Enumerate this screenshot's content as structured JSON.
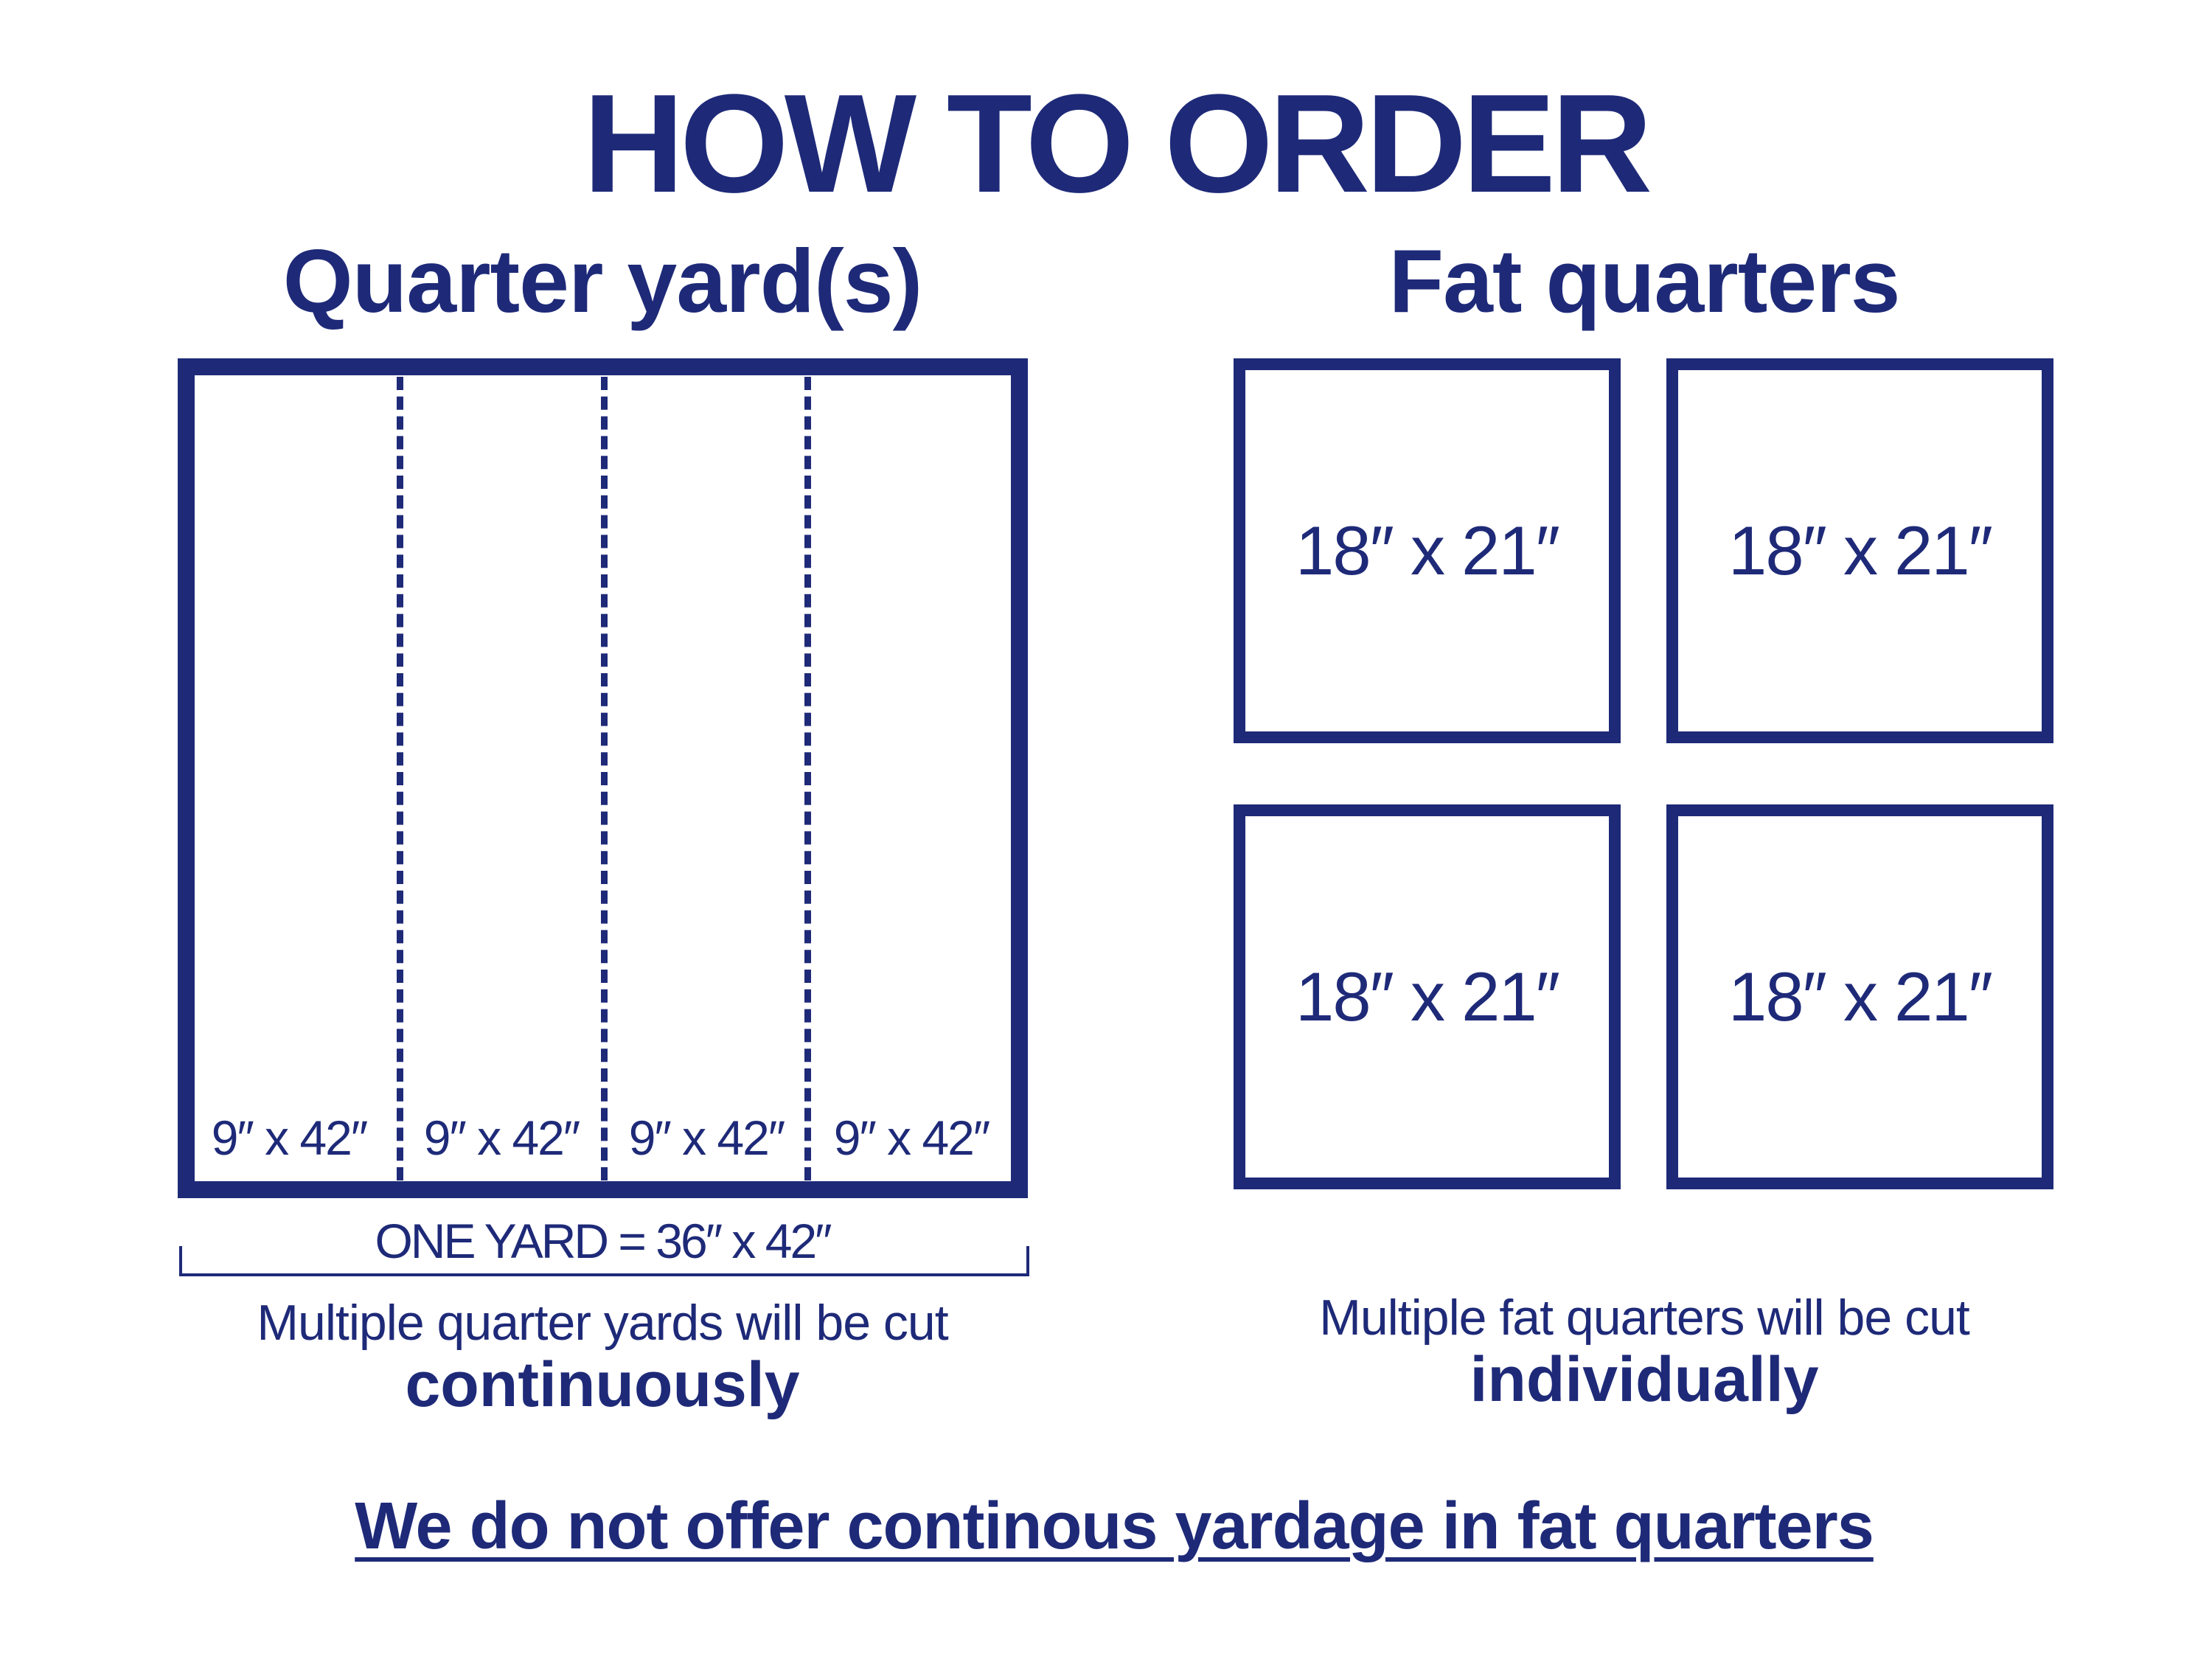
{
  "title": "HOW TO ORDER",
  "colors": {
    "primary": "#1e2a78",
    "background": "#ffffff"
  },
  "quarter_yard": {
    "heading": "Quarter yard(s)",
    "strips": [
      "9″ x 42″",
      "9″ x 42″",
      "9″ x 42″",
      "9″ x 42″"
    ],
    "measure": "ONE YARD = 36″ x 42″",
    "note": "Multiple quarter yards will be cut",
    "emphasis": "continuously"
  },
  "fat_quarters": {
    "heading": "Fat quarters",
    "pieces": [
      "18″ x 21″",
      "18″ x 21″",
      "18″ x 21″",
      "18″ x 21″"
    ],
    "note": "Multiple fat quarters will be cut",
    "emphasis": "individually"
  },
  "footer": "We do not offer continous yardage in fat quarters"
}
